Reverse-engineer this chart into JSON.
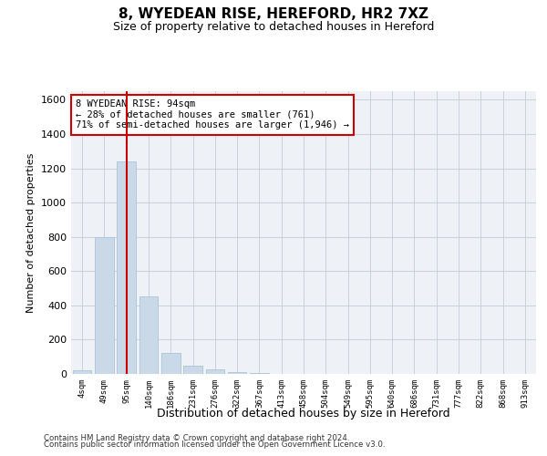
{
  "title1": "8, WYEDEAN RISE, HEREFORD, HR2 7XZ",
  "title2": "Size of property relative to detached houses in Hereford",
  "xlabel": "Distribution of detached houses by size in Hereford",
  "ylabel": "Number of detached properties",
  "bar_color": "#c9d9e8",
  "bar_edge_color": "#a8c4d8",
  "categories": [
    "4sqm",
    "49sqm",
    "95sqm",
    "140sqm",
    "186sqm",
    "231sqm",
    "276sqm",
    "322sqm",
    "367sqm",
    "413sqm",
    "458sqm",
    "504sqm",
    "549sqm",
    "595sqm",
    "640sqm",
    "686sqm",
    "731sqm",
    "777sqm",
    "822sqm",
    "868sqm",
    "913sqm"
  ],
  "values": [
    20,
    800,
    1240,
    455,
    125,
    50,
    25,
    10,
    5,
    0,
    0,
    0,
    0,
    0,
    0,
    0,
    0,
    0,
    0,
    0,
    0
  ],
  "ylim": [
    0,
    1650
  ],
  "yticks": [
    0,
    200,
    400,
    600,
    800,
    1000,
    1200,
    1400,
    1600
  ],
  "property_line_x": 2,
  "property_line_color": "#cc0000",
  "annotation_text": "8 WYEDEAN RISE: 94sqm\n← 28% of detached houses are smaller (761)\n71% of semi-detached houses are larger (1,946) →",
  "annotation_box_color": "#ffffff",
  "annotation_box_edge_color": "#cc0000",
  "footer1": "Contains HM Land Registry data © Crown copyright and database right 2024.",
  "footer2": "Contains public sector information licensed under the Open Government Licence v3.0.",
  "grid_color": "#c8d0dc",
  "background_color": "#eef2f7"
}
